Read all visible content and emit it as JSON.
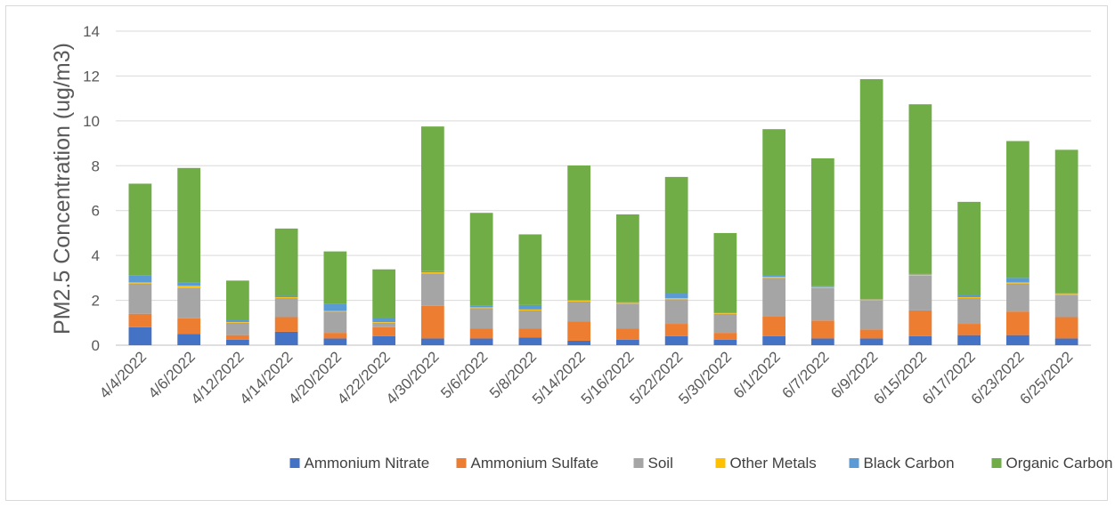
{
  "chart_data": {
    "type": "bar",
    "stacked": true,
    "title": "",
    "xlabel": "",
    "ylabel": "PM2.5 Concentration (ug/m3)",
    "ylim": [
      0,
      14
    ],
    "yticks": [
      0,
      2,
      4,
      6,
      8,
      10,
      12,
      14
    ],
    "grid": true,
    "legend_position": "bottom",
    "categories": [
      "4/4/2022",
      "4/6/2022",
      "4/12/2022",
      "4/14/2022",
      "4/20/2022",
      "4/22/2022",
      "4/30/2022",
      "5/6/2022",
      "5/8/2022",
      "5/14/2022",
      "5/16/2022",
      "5/22/2022",
      "5/30/2022",
      "6/1/2022",
      "6/7/2022",
      "6/9/2022",
      "6/15/2022",
      "6/17/2022",
      "6/23/2022",
      "6/25/2022"
    ],
    "series": [
      {
        "name": "Ammonium Nitrate",
        "color": "#4472C4",
        "values": [
          0.8,
          0.5,
          0.25,
          0.6,
          0.3,
          0.4,
          0.3,
          0.3,
          0.35,
          0.2,
          0.25,
          0.4,
          0.25,
          0.4,
          0.3,
          0.3,
          0.4,
          0.45,
          0.45,
          0.3
        ]
      },
      {
        "name": "Ammonium Sulfate",
        "color": "#ED7D31",
        "values": [
          0.6,
          0.7,
          0.2,
          0.65,
          0.25,
          0.4,
          1.45,
          0.45,
          0.4,
          0.85,
          0.5,
          0.55,
          0.3,
          0.9,
          0.8,
          0.4,
          1.15,
          0.5,
          1.05,
          0.95
        ]
      },
      {
        "name": "Soil",
        "color": "#A5A5A5",
        "values": [
          1.35,
          1.35,
          0.55,
          0.85,
          0.95,
          0.2,
          1.45,
          0.9,
          0.8,
          0.9,
          1.1,
          1.1,
          0.85,
          1.7,
          1.45,
          1.3,
          1.55,
          1.15,
          1.25,
          1.0
        ]
      },
      {
        "name": "Other Metals",
        "color": "#FFC000",
        "values": [
          0.05,
          0.1,
          0.03,
          0.04,
          0.03,
          0.03,
          0.05,
          0.04,
          0.04,
          0.04,
          0.04,
          0.05,
          0.03,
          0.05,
          0.04,
          0.04,
          0.05,
          0.04,
          0.05,
          0.04
        ]
      },
      {
        "name": "Black Carbon",
        "color": "#5B9BD5",
        "values": [
          0.3,
          0.15,
          0.1,
          0.06,
          0.3,
          0.2,
          0.05,
          0.06,
          0.2,
          0.02,
          0.04,
          0.2,
          0.02,
          0.08,
          0.04,
          0.02,
          0.04,
          0.1,
          0.2,
          0.02
        ]
      },
      {
        "name": "Organic Carbon",
        "color": "#70AD47",
        "values": [
          4.1,
          5.1,
          1.75,
          3.0,
          2.35,
          2.15,
          6.45,
          4.15,
          3.15,
          6.0,
          3.9,
          5.2,
          3.55,
          6.5,
          5.7,
          9.8,
          7.55,
          4.15,
          6.1,
          6.4
        ]
      }
    ]
  }
}
